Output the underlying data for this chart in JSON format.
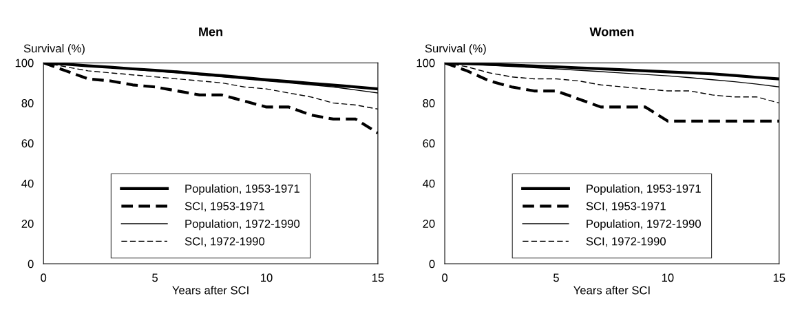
{
  "chart_data": [
    {
      "type": "line",
      "title": "Men",
      "ylabel": "Survival (%)",
      "xlabel": "Years after SCI",
      "x": [
        0,
        1,
        2,
        3,
        4,
        5,
        6,
        7,
        8,
        9,
        10,
        11,
        12,
        13,
        14,
        15
      ],
      "xlim": [
        0,
        15
      ],
      "xticks": [
        0,
        5,
        10,
        15
      ],
      "ylim": [
        0,
        100
      ],
      "yticks": [
        0,
        20,
        40,
        60,
        80,
        100
      ],
      "grid": false,
      "legend": "bottom",
      "marker": "none",
      "series": [
        {
          "name": "Population, 1953-1971",
          "color": "#000000",
          "line_style": "solid",
          "values": [
            100,
            99.3,
            98.5,
            97.8,
            97,
            96.3,
            95.5,
            94.5,
            93.6,
            92.6,
            91.6,
            90.7,
            89.8,
            88.9,
            88,
            87
          ]
        },
        {
          "name": "SCI, 1953-1971",
          "color": "#000000",
          "line_style": "dashed",
          "values": [
            100,
            96,
            92,
            91,
            89,
            88,
            86,
            84,
            84,
            81,
            78,
            78,
            74,
            72,
            72,
            65
          ]
        },
        {
          "name": "Population, 1972-1990",
          "color": "#000000",
          "line_style": "solid",
          "values": [
            100,
            99.2,
            98.4,
            97.6,
            96.7,
            95.8,
            95,
            94,
            93,
            92,
            91,
            90,
            89,
            88,
            86.5,
            85
          ]
        },
        {
          "name": "SCI, 1972-1990",
          "color": "#000000",
          "line_style": "dashed",
          "values": [
            100,
            98,
            96,
            95,
            94,
            93,
            92,
            91,
            90,
            88,
            87,
            85,
            83,
            80,
            79,
            77
          ]
        }
      ]
    },
    {
      "type": "line",
      "title": "Women",
      "ylabel": "Survival (%)",
      "xlabel": "Years after SCI",
      "x": [
        0,
        1,
        2,
        3,
        4,
        5,
        6,
        7,
        8,
        9,
        10,
        11,
        12,
        13,
        14,
        15
      ],
      "xlim": [
        0,
        15
      ],
      "xticks": [
        0,
        5,
        10,
        15
      ],
      "ylim": [
        0,
        100
      ],
      "yticks": [
        0,
        20,
        40,
        60,
        80,
        100
      ],
      "grid": false,
      "legend": "bottom",
      "marker": "none",
      "series": [
        {
          "name": "Population, 1953-1971",
          "color": "#000000",
          "line_style": "solid",
          "values": [
            100,
            99.6,
            99.2,
            98.8,
            98.4,
            98,
            97.5,
            97,
            96.5,
            96,
            95.5,
            95,
            94.5,
            93.7,
            92.8,
            92
          ]
        },
        {
          "name": "SCI, 1953-1971",
          "color": "#000000",
          "line_style": "dashed",
          "values": [
            100,
            96,
            91,
            88,
            86,
            86,
            82,
            78,
            78,
            78,
            71,
            71,
            71,
            71,
            71,
            71
          ]
        },
        {
          "name": "Population, 1972-1990",
          "color": "#000000",
          "line_style": "solid",
          "values": [
            100,
            99.4,
            98.8,
            98.2,
            97.6,
            97,
            96.3,
            95.6,
            94.9,
            94.2,
            93.5,
            92.6,
            91.6,
            90.6,
            89.4,
            88
          ]
        },
        {
          "name": "SCI, 1972-1990",
          "color": "#000000",
          "line_style": "dashed",
          "values": [
            100,
            98,
            95,
            93,
            92,
            92,
            91,
            89,
            88,
            87,
            86,
            86,
            84,
            83,
            83,
            80
          ]
        }
      ]
    }
  ]
}
